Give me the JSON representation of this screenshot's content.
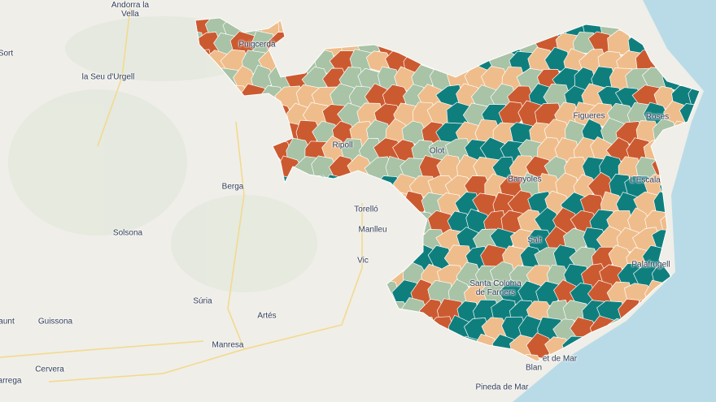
{
  "labels": [
    "Andorra la Vella",
    "Sort",
    "Puigcerdà",
    "la Seu d'Urgell",
    "Ripoll",
    "Olot",
    "Figueres",
    "Roses",
    "Berga",
    "Banyoles",
    "L'Escala",
    "Torelló",
    "Solsona",
    "Manlleu",
    "Salt",
    "Vic",
    "Palafrugell",
    "Santa Coloma de Farners",
    "Súria",
    "Artés",
    "Guissona",
    "aunt",
    "Manresa",
    "Cervera",
    "arrega",
    "et de Mar",
    "Blan",
    "Pineda de Mar"
  ]
}
